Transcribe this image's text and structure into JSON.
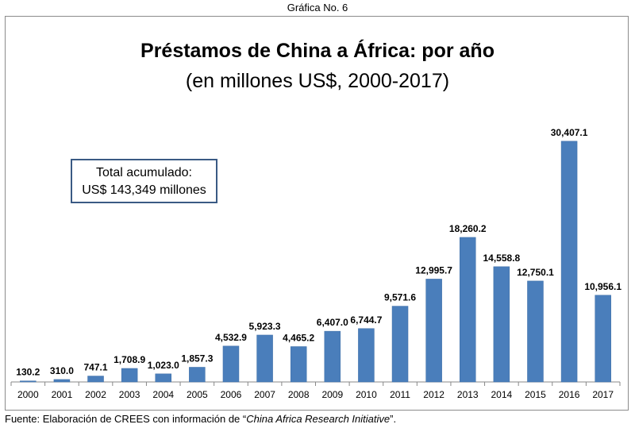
{
  "figure_caption": "Gráfica No. 6",
  "total_box": {
    "line1": "Total acumulado:",
    "line2": "US$ 143,349 millones"
  },
  "source": {
    "prefix": "Fuente: Elaboración de CREES con información de “",
    "italic": "China Africa Research Initiative",
    "suffix": "”."
  },
  "colors": {
    "bar": "#4a7ebb",
    "bar_edge": "#3d6da6",
    "axis": "#888888"
  },
  "chart_data": {
    "type": "bar",
    "title": "Préstamos de China a África: por año",
    "subtitle": "(en millones US$, 2000-2017)",
    "xlabel": "",
    "ylabel": "",
    "ylim": [
      0,
      34000
    ],
    "grid": false,
    "categories": [
      "2000",
      "2001",
      "2002",
      "2003",
      "2004",
      "2005",
      "2006",
      "2007",
      "2008",
      "2009",
      "2010",
      "2011",
      "2012",
      "2013",
      "2014",
      "2015",
      "2016",
      "2017"
    ],
    "values": [
      130.2,
      310.0,
      747.1,
      1708.9,
      1023.0,
      1857.3,
      4532.9,
      5923.3,
      4465.2,
      6407.0,
      6744.7,
      9571.6,
      12995.7,
      18260.2,
      14558.8,
      12750.1,
      30407.1,
      10956.1
    ],
    "data_labels": [
      "130.2",
      "310.0",
      "747.1",
      "1,708.9",
      "1,023.0",
      "1,857.3",
      "4,532.9",
      "5,923.3",
      "4,465.2",
      "6,407.0",
      "6,744.7",
      "9,571.6",
      "12,995.7",
      "18,260.2",
      "14,558.8",
      "12,750.1",
      "30,407.1",
      "10,956.1"
    ]
  }
}
